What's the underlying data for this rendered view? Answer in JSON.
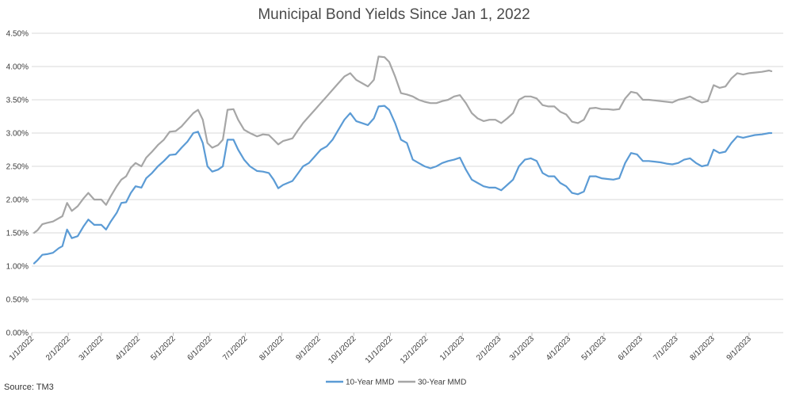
{
  "chart_data": {
    "type": "line",
    "title": "Municipal Bond Yields Since Jan 1, 2022",
    "source": "Source: TM3",
    "x_start": "2022-01-01",
    "x_end": "2023-09-30",
    "ylim": [
      0,
      4.5
    ],
    "y_ticks": [
      "0.00%",
      "0.50%",
      "1.00%",
      "1.50%",
      "2.00%",
      "2.50%",
      "3.00%",
      "3.50%",
      "4.00%",
      "4.50%"
    ],
    "x_ticks": [
      "1/1/2022",
      "2/1/2022",
      "3/1/2022",
      "4/1/2022",
      "5/1/2022",
      "6/1/2022",
      "7/1/2022",
      "8/1/2022",
      "9/1/2022",
      "10/1/2022",
      "11/1/2022",
      "12/1/2022",
      "1/1/2023",
      "2/1/2023",
      "3/1/2023",
      "4/1/2023",
      "5/1/2023",
      "6/1/2023",
      "7/1/2023",
      "8/1/2023",
      "9/1/2023"
    ],
    "grid": true,
    "legend_position": "bottom",
    "series": [
      {
        "name": "10-Year MMD",
        "color": "#5b9bd5",
        "points": [
          [
            "2022-01-03",
            1.04
          ],
          [
            "2022-01-06",
            1.09
          ],
          [
            "2022-01-10",
            1.17
          ],
          [
            "2022-01-14",
            1.18
          ],
          [
            "2022-01-19",
            1.2
          ],
          [
            "2022-01-24",
            1.27
          ],
          [
            "2022-01-27",
            1.3
          ],
          [
            "2022-01-31",
            1.55
          ],
          [
            "2022-02-04",
            1.42
          ],
          [
            "2022-02-09",
            1.45
          ],
          [
            "2022-02-14",
            1.6
          ],
          [
            "2022-02-18",
            1.7
          ],
          [
            "2022-02-23",
            1.62
          ],
          [
            "2022-03-01",
            1.62
          ],
          [
            "2022-03-05",
            1.55
          ],
          [
            "2022-03-09",
            1.67
          ],
          [
            "2022-03-14",
            1.8
          ],
          [
            "2022-03-18",
            1.95
          ],
          [
            "2022-03-22",
            1.96
          ],
          [
            "2022-03-26",
            2.1
          ],
          [
            "2022-03-30",
            2.2
          ],
          [
            "2022-04-04",
            2.18
          ],
          [
            "2022-04-08",
            2.32
          ],
          [
            "2022-04-13",
            2.4
          ],
          [
            "2022-04-18",
            2.5
          ],
          [
            "2022-04-23",
            2.58
          ],
          [
            "2022-04-28",
            2.67
          ],
          [
            "2022-05-03",
            2.68
          ],
          [
            "2022-05-08",
            2.78
          ],
          [
            "2022-05-13",
            2.87
          ],
          [
            "2022-05-18",
            3.0
          ],
          [
            "2022-05-22",
            3.02
          ],
          [
            "2022-05-26",
            2.85
          ],
          [
            "2022-05-30",
            2.5
          ],
          [
            "2022-06-03",
            2.42
          ],
          [
            "2022-06-08",
            2.45
          ],
          [
            "2022-06-12",
            2.5
          ],
          [
            "2022-06-16",
            2.9
          ],
          [
            "2022-06-21",
            2.9
          ],
          [
            "2022-06-25",
            2.75
          ],
          [
            "2022-06-30",
            2.6
          ],
          [
            "2022-07-05",
            2.5
          ],
          [
            "2022-07-11",
            2.43
          ],
          [
            "2022-07-16",
            2.42
          ],
          [
            "2022-07-21",
            2.4
          ],
          [
            "2022-07-25",
            2.3
          ],
          [
            "2022-07-29",
            2.17
          ],
          [
            "2022-08-02",
            2.22
          ],
          [
            "2022-08-06",
            2.25
          ],
          [
            "2022-08-10",
            2.28
          ],
          [
            "2022-08-15",
            2.4
          ],
          [
            "2022-08-19",
            2.5
          ],
          [
            "2022-08-24",
            2.55
          ],
          [
            "2022-08-29",
            2.65
          ],
          [
            "2022-09-03",
            2.75
          ],
          [
            "2022-09-08",
            2.8
          ],
          [
            "2022-09-13",
            2.9
          ],
          [
            "2022-09-18",
            3.05
          ],
          [
            "2022-09-23",
            3.2
          ],
          [
            "2022-09-28",
            3.3
          ],
          [
            "2022-10-03",
            3.18
          ],
          [
            "2022-10-08",
            3.15
          ],
          [
            "2022-10-13",
            3.12
          ],
          [
            "2022-10-18",
            3.22
          ],
          [
            "2022-10-22",
            3.4
          ],
          [
            "2022-10-27",
            3.41
          ],
          [
            "2022-10-31",
            3.35
          ],
          [
            "2022-11-05",
            3.15
          ],
          [
            "2022-11-10",
            2.9
          ],
          [
            "2022-11-15",
            2.85
          ],
          [
            "2022-11-20",
            2.6
          ],
          [
            "2022-11-25",
            2.55
          ],
          [
            "2022-11-30",
            2.5
          ],
          [
            "2022-12-05",
            2.47
          ],
          [
            "2022-12-10",
            2.5
          ],
          [
            "2022-12-15",
            2.55
          ],
          [
            "2022-12-20",
            2.58
          ],
          [
            "2022-12-25",
            2.6
          ],
          [
            "2022-12-30",
            2.63
          ],
          [
            "2023-01-04",
            2.45
          ],
          [
            "2023-01-09",
            2.3
          ],
          [
            "2023-01-14",
            2.25
          ],
          [
            "2023-01-19",
            2.2
          ],
          [
            "2023-01-24",
            2.18
          ],
          [
            "2023-01-29",
            2.18
          ],
          [
            "2023-02-03",
            2.14
          ],
          [
            "2023-02-08",
            2.22
          ],
          [
            "2023-02-13",
            2.3
          ],
          [
            "2023-02-18",
            2.5
          ],
          [
            "2023-02-23",
            2.6
          ],
          [
            "2023-02-28",
            2.62
          ],
          [
            "2023-03-05",
            2.58
          ],
          [
            "2023-03-10",
            2.4
          ],
          [
            "2023-03-15",
            2.35
          ],
          [
            "2023-03-20",
            2.35
          ],
          [
            "2023-03-25",
            2.25
          ],
          [
            "2023-03-30",
            2.2
          ],
          [
            "2023-04-04",
            2.1
          ],
          [
            "2023-04-09",
            2.08
          ],
          [
            "2023-04-14",
            2.12
          ],
          [
            "2023-04-19",
            2.35
          ],
          [
            "2023-04-24",
            2.35
          ],
          [
            "2023-04-29",
            2.32
          ],
          [
            "2023-05-04",
            2.31
          ],
          [
            "2023-05-09",
            2.3
          ],
          [
            "2023-05-14",
            2.32
          ],
          [
            "2023-05-19",
            2.55
          ],
          [
            "2023-05-24",
            2.7
          ],
          [
            "2023-05-29",
            2.68
          ],
          [
            "2023-06-03",
            2.58
          ],
          [
            "2023-06-08",
            2.58
          ],
          [
            "2023-06-13",
            2.57
          ],
          [
            "2023-06-18",
            2.56
          ],
          [
            "2023-06-23",
            2.54
          ],
          [
            "2023-06-28",
            2.53
          ],
          [
            "2023-07-03",
            2.55
          ],
          [
            "2023-07-08",
            2.6
          ],
          [
            "2023-07-13",
            2.62
          ],
          [
            "2023-07-18",
            2.55
          ],
          [
            "2023-07-23",
            2.5
          ],
          [
            "2023-07-28",
            2.52
          ],
          [
            "2023-08-02",
            2.75
          ],
          [
            "2023-08-07",
            2.7
          ],
          [
            "2023-08-12",
            2.72
          ],
          [
            "2023-08-17",
            2.85
          ],
          [
            "2023-08-22",
            2.95
          ],
          [
            "2023-08-27",
            2.93
          ],
          [
            "2023-09-01",
            2.95
          ],
          [
            "2023-09-06",
            2.97
          ],
          [
            "2023-09-12",
            2.98
          ],
          [
            "2023-09-18",
            3.0
          ],
          [
            "2023-09-20",
            3.0
          ]
        ]
      },
      {
        "name": "30-Year MMD",
        "color": "#a6a6a6",
        "points": [
          [
            "2022-01-03",
            1.5
          ],
          [
            "2022-01-06",
            1.54
          ],
          [
            "2022-01-10",
            1.63
          ],
          [
            "2022-01-14",
            1.65
          ],
          [
            "2022-01-19",
            1.67
          ],
          [
            "2022-01-24",
            1.72
          ],
          [
            "2022-01-27",
            1.75
          ],
          [
            "2022-01-31",
            1.95
          ],
          [
            "2022-02-04",
            1.83
          ],
          [
            "2022-02-09",
            1.9
          ],
          [
            "2022-02-14",
            2.02
          ],
          [
            "2022-02-18",
            2.1
          ],
          [
            "2022-02-23",
            2.0
          ],
          [
            "2022-03-01",
            2.0
          ],
          [
            "2022-03-05",
            1.92
          ],
          [
            "2022-03-09",
            2.05
          ],
          [
            "2022-03-14",
            2.2
          ],
          [
            "2022-03-18",
            2.3
          ],
          [
            "2022-03-22",
            2.35
          ],
          [
            "2022-03-26",
            2.48
          ],
          [
            "2022-03-30",
            2.55
          ],
          [
            "2022-04-04",
            2.5
          ],
          [
            "2022-04-08",
            2.63
          ],
          [
            "2022-04-13",
            2.72
          ],
          [
            "2022-04-18",
            2.82
          ],
          [
            "2022-04-23",
            2.9
          ],
          [
            "2022-04-28",
            3.02
          ],
          [
            "2022-05-03",
            3.03
          ],
          [
            "2022-05-08",
            3.1
          ],
          [
            "2022-05-13",
            3.2
          ],
          [
            "2022-05-18",
            3.3
          ],
          [
            "2022-05-22",
            3.35
          ],
          [
            "2022-05-26",
            3.2
          ],
          [
            "2022-05-30",
            2.85
          ],
          [
            "2022-06-03",
            2.78
          ],
          [
            "2022-06-08",
            2.82
          ],
          [
            "2022-06-12",
            2.9
          ],
          [
            "2022-06-16",
            3.35
          ],
          [
            "2022-06-21",
            3.36
          ],
          [
            "2022-06-25",
            3.2
          ],
          [
            "2022-06-30",
            3.05
          ],
          [
            "2022-07-05",
            3.0
          ],
          [
            "2022-07-11",
            2.95
          ],
          [
            "2022-07-16",
            2.98
          ],
          [
            "2022-07-21",
            2.97
          ],
          [
            "2022-07-25",
            2.9
          ],
          [
            "2022-07-29",
            2.83
          ],
          [
            "2022-08-02",
            2.88
          ],
          [
            "2022-08-06",
            2.9
          ],
          [
            "2022-08-10",
            2.92
          ],
          [
            "2022-08-15",
            3.05
          ],
          [
            "2022-08-19",
            3.15
          ],
          [
            "2022-08-24",
            3.25
          ],
          [
            "2022-08-29",
            3.35
          ],
          [
            "2022-09-03",
            3.45
          ],
          [
            "2022-09-08",
            3.55
          ],
          [
            "2022-09-13",
            3.65
          ],
          [
            "2022-09-18",
            3.75
          ],
          [
            "2022-09-23",
            3.85
          ],
          [
            "2022-09-28",
            3.9
          ],
          [
            "2022-10-03",
            3.8
          ],
          [
            "2022-10-08",
            3.75
          ],
          [
            "2022-10-13",
            3.7
          ],
          [
            "2022-10-18",
            3.8
          ],
          [
            "2022-10-22",
            4.15
          ],
          [
            "2022-10-27",
            4.14
          ],
          [
            "2022-10-31",
            4.07
          ],
          [
            "2022-11-05",
            3.85
          ],
          [
            "2022-11-10",
            3.6
          ],
          [
            "2022-11-15",
            3.58
          ],
          [
            "2022-11-20",
            3.55
          ],
          [
            "2022-11-25",
            3.5
          ],
          [
            "2022-11-30",
            3.47
          ],
          [
            "2022-12-05",
            3.45
          ],
          [
            "2022-12-10",
            3.45
          ],
          [
            "2022-12-15",
            3.48
          ],
          [
            "2022-12-20",
            3.5
          ],
          [
            "2022-12-25",
            3.55
          ],
          [
            "2022-12-30",
            3.57
          ],
          [
            "2023-01-04",
            3.45
          ],
          [
            "2023-01-09",
            3.3
          ],
          [
            "2023-01-14",
            3.22
          ],
          [
            "2023-01-19",
            3.18
          ],
          [
            "2023-01-24",
            3.2
          ],
          [
            "2023-01-29",
            3.2
          ],
          [
            "2023-02-03",
            3.15
          ],
          [
            "2023-02-08",
            3.22
          ],
          [
            "2023-02-13",
            3.3
          ],
          [
            "2023-02-18",
            3.5
          ],
          [
            "2023-02-23",
            3.55
          ],
          [
            "2023-02-28",
            3.55
          ],
          [
            "2023-03-05",
            3.52
          ],
          [
            "2023-03-10",
            3.42
          ],
          [
            "2023-03-15",
            3.4
          ],
          [
            "2023-03-20",
            3.4
          ],
          [
            "2023-03-25",
            3.32
          ],
          [
            "2023-03-30",
            3.28
          ],
          [
            "2023-04-04",
            3.17
          ],
          [
            "2023-04-09",
            3.15
          ],
          [
            "2023-04-14",
            3.2
          ],
          [
            "2023-04-19",
            3.37
          ],
          [
            "2023-04-24",
            3.38
          ],
          [
            "2023-04-29",
            3.36
          ],
          [
            "2023-05-04",
            3.36
          ],
          [
            "2023-05-09",
            3.35
          ],
          [
            "2023-05-14",
            3.36
          ],
          [
            "2023-05-19",
            3.52
          ],
          [
            "2023-05-24",
            3.62
          ],
          [
            "2023-05-29",
            3.6
          ],
          [
            "2023-06-03",
            3.5
          ],
          [
            "2023-06-08",
            3.5
          ],
          [
            "2023-06-13",
            3.49
          ],
          [
            "2023-06-18",
            3.48
          ],
          [
            "2023-06-23",
            3.47
          ],
          [
            "2023-06-28",
            3.46
          ],
          [
            "2023-07-03",
            3.5
          ],
          [
            "2023-07-08",
            3.52
          ],
          [
            "2023-07-13",
            3.55
          ],
          [
            "2023-07-18",
            3.5
          ],
          [
            "2023-07-23",
            3.46
          ],
          [
            "2023-07-28",
            3.48
          ],
          [
            "2023-08-02",
            3.72
          ],
          [
            "2023-08-07",
            3.68
          ],
          [
            "2023-08-12",
            3.7
          ],
          [
            "2023-08-17",
            3.82
          ],
          [
            "2023-08-22",
            3.9
          ],
          [
            "2023-08-27",
            3.88
          ],
          [
            "2023-09-01",
            3.9
          ],
          [
            "2023-09-06",
            3.91
          ],
          [
            "2023-09-12",
            3.92
          ],
          [
            "2023-09-18",
            3.94
          ],
          [
            "2023-09-20",
            3.93
          ]
        ]
      }
    ]
  }
}
